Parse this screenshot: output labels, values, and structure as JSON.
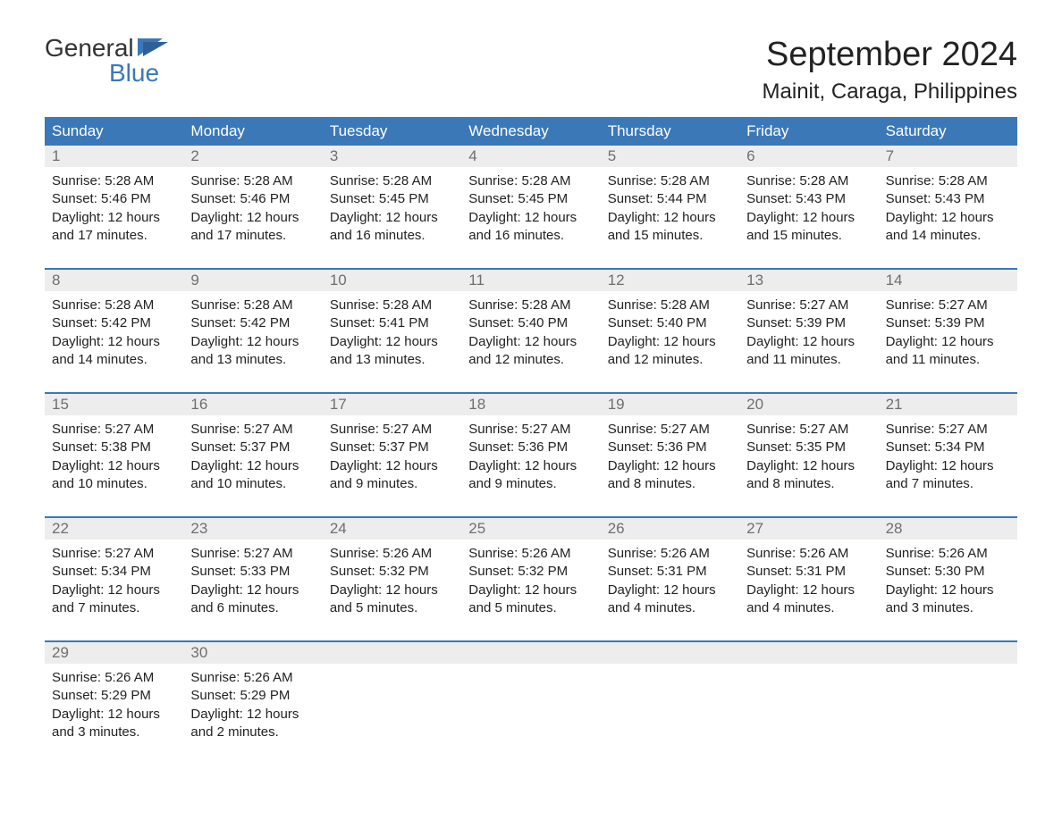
{
  "logo": {
    "line1": "General",
    "line2": "Blue"
  },
  "title": "September 2024",
  "location": "Mainit, Caraga, Philippines",
  "colors": {
    "header_bg": "#3b78b8",
    "header_text": "#ffffff",
    "daynum_bg": "#ededed",
    "daynum_text": "#6f6f6f",
    "cell_text": "#222222",
    "logo_blue": "#3b78b8"
  },
  "weekdays": [
    "Sunday",
    "Monday",
    "Tuesday",
    "Wednesday",
    "Thursday",
    "Friday",
    "Saturday"
  ],
  "weeks": [
    {
      "days": [
        {
          "num": "1",
          "sunrise": "Sunrise: 5:28 AM",
          "sunset": "Sunset: 5:46 PM",
          "daylight1": "Daylight: 12 hours",
          "daylight2": "and 17 minutes."
        },
        {
          "num": "2",
          "sunrise": "Sunrise: 5:28 AM",
          "sunset": "Sunset: 5:46 PM",
          "daylight1": "Daylight: 12 hours",
          "daylight2": "and 17 minutes."
        },
        {
          "num": "3",
          "sunrise": "Sunrise: 5:28 AM",
          "sunset": "Sunset: 5:45 PM",
          "daylight1": "Daylight: 12 hours",
          "daylight2": "and 16 minutes."
        },
        {
          "num": "4",
          "sunrise": "Sunrise: 5:28 AM",
          "sunset": "Sunset: 5:45 PM",
          "daylight1": "Daylight: 12 hours",
          "daylight2": "and 16 minutes."
        },
        {
          "num": "5",
          "sunrise": "Sunrise: 5:28 AM",
          "sunset": "Sunset: 5:44 PM",
          "daylight1": "Daylight: 12 hours",
          "daylight2": "and 15 minutes."
        },
        {
          "num": "6",
          "sunrise": "Sunrise: 5:28 AM",
          "sunset": "Sunset: 5:43 PM",
          "daylight1": "Daylight: 12 hours",
          "daylight2": "and 15 minutes."
        },
        {
          "num": "7",
          "sunrise": "Sunrise: 5:28 AM",
          "sunset": "Sunset: 5:43 PM",
          "daylight1": "Daylight: 12 hours",
          "daylight2": "and 14 minutes."
        }
      ]
    },
    {
      "days": [
        {
          "num": "8",
          "sunrise": "Sunrise: 5:28 AM",
          "sunset": "Sunset: 5:42 PM",
          "daylight1": "Daylight: 12 hours",
          "daylight2": "and 14 minutes."
        },
        {
          "num": "9",
          "sunrise": "Sunrise: 5:28 AM",
          "sunset": "Sunset: 5:42 PM",
          "daylight1": "Daylight: 12 hours",
          "daylight2": "and 13 minutes."
        },
        {
          "num": "10",
          "sunrise": "Sunrise: 5:28 AM",
          "sunset": "Sunset: 5:41 PM",
          "daylight1": "Daylight: 12 hours",
          "daylight2": "and 13 minutes."
        },
        {
          "num": "11",
          "sunrise": "Sunrise: 5:28 AM",
          "sunset": "Sunset: 5:40 PM",
          "daylight1": "Daylight: 12 hours",
          "daylight2": "and 12 minutes."
        },
        {
          "num": "12",
          "sunrise": "Sunrise: 5:28 AM",
          "sunset": "Sunset: 5:40 PM",
          "daylight1": "Daylight: 12 hours",
          "daylight2": "and 12 minutes."
        },
        {
          "num": "13",
          "sunrise": "Sunrise: 5:27 AM",
          "sunset": "Sunset: 5:39 PM",
          "daylight1": "Daylight: 12 hours",
          "daylight2": "and 11 minutes."
        },
        {
          "num": "14",
          "sunrise": "Sunrise: 5:27 AM",
          "sunset": "Sunset: 5:39 PM",
          "daylight1": "Daylight: 12 hours",
          "daylight2": "and 11 minutes."
        }
      ]
    },
    {
      "days": [
        {
          "num": "15",
          "sunrise": "Sunrise: 5:27 AM",
          "sunset": "Sunset: 5:38 PM",
          "daylight1": "Daylight: 12 hours",
          "daylight2": "and 10 minutes."
        },
        {
          "num": "16",
          "sunrise": "Sunrise: 5:27 AM",
          "sunset": "Sunset: 5:37 PM",
          "daylight1": "Daylight: 12 hours",
          "daylight2": "and 10 minutes."
        },
        {
          "num": "17",
          "sunrise": "Sunrise: 5:27 AM",
          "sunset": "Sunset: 5:37 PM",
          "daylight1": "Daylight: 12 hours",
          "daylight2": "and 9 minutes."
        },
        {
          "num": "18",
          "sunrise": "Sunrise: 5:27 AM",
          "sunset": "Sunset: 5:36 PM",
          "daylight1": "Daylight: 12 hours",
          "daylight2": "and 9 minutes."
        },
        {
          "num": "19",
          "sunrise": "Sunrise: 5:27 AM",
          "sunset": "Sunset: 5:36 PM",
          "daylight1": "Daylight: 12 hours",
          "daylight2": "and 8 minutes."
        },
        {
          "num": "20",
          "sunrise": "Sunrise: 5:27 AM",
          "sunset": "Sunset: 5:35 PM",
          "daylight1": "Daylight: 12 hours",
          "daylight2": "and 8 minutes."
        },
        {
          "num": "21",
          "sunrise": "Sunrise: 5:27 AM",
          "sunset": "Sunset: 5:34 PM",
          "daylight1": "Daylight: 12 hours",
          "daylight2": "and 7 minutes."
        }
      ]
    },
    {
      "days": [
        {
          "num": "22",
          "sunrise": "Sunrise: 5:27 AM",
          "sunset": "Sunset: 5:34 PM",
          "daylight1": "Daylight: 12 hours",
          "daylight2": "and 7 minutes."
        },
        {
          "num": "23",
          "sunrise": "Sunrise: 5:27 AM",
          "sunset": "Sunset: 5:33 PM",
          "daylight1": "Daylight: 12 hours",
          "daylight2": "and 6 minutes."
        },
        {
          "num": "24",
          "sunrise": "Sunrise: 5:26 AM",
          "sunset": "Sunset: 5:32 PM",
          "daylight1": "Daylight: 12 hours",
          "daylight2": "and 5 minutes."
        },
        {
          "num": "25",
          "sunrise": "Sunrise: 5:26 AM",
          "sunset": "Sunset: 5:32 PM",
          "daylight1": "Daylight: 12 hours",
          "daylight2": "and 5 minutes."
        },
        {
          "num": "26",
          "sunrise": "Sunrise: 5:26 AM",
          "sunset": "Sunset: 5:31 PM",
          "daylight1": "Daylight: 12 hours",
          "daylight2": "and 4 minutes."
        },
        {
          "num": "27",
          "sunrise": "Sunrise: 5:26 AM",
          "sunset": "Sunset: 5:31 PM",
          "daylight1": "Daylight: 12 hours",
          "daylight2": "and 4 minutes."
        },
        {
          "num": "28",
          "sunrise": "Sunrise: 5:26 AM",
          "sunset": "Sunset: 5:30 PM",
          "daylight1": "Daylight: 12 hours",
          "daylight2": "and 3 minutes."
        }
      ]
    },
    {
      "days": [
        {
          "num": "29",
          "sunrise": "Sunrise: 5:26 AM",
          "sunset": "Sunset: 5:29 PM",
          "daylight1": "Daylight: 12 hours",
          "daylight2": "and 3 minutes."
        },
        {
          "num": "30",
          "sunrise": "Sunrise: 5:26 AM",
          "sunset": "Sunset: 5:29 PM",
          "daylight1": "Daylight: 12 hours",
          "daylight2": "and 2 minutes."
        },
        {
          "num": "",
          "empty": true
        },
        {
          "num": "",
          "empty": true
        },
        {
          "num": "",
          "empty": true
        },
        {
          "num": "",
          "empty": true
        },
        {
          "num": "",
          "empty": true
        }
      ]
    }
  ]
}
